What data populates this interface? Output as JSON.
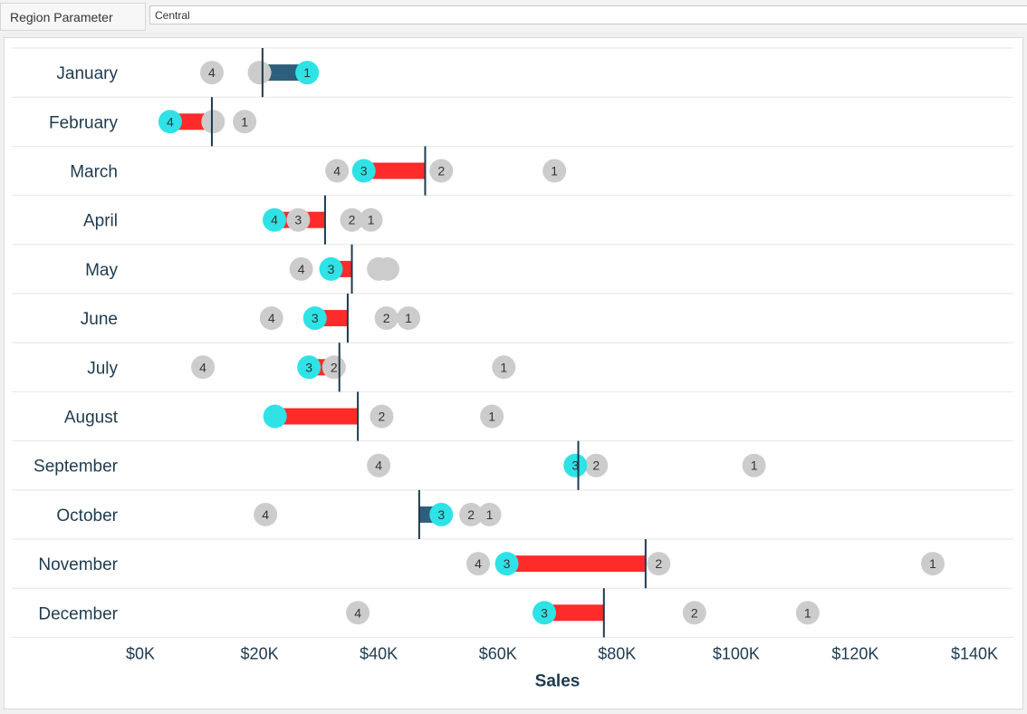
{
  "parameter": {
    "label": "Region Parameter",
    "value": "Central"
  },
  "colors": {
    "selected": "#2ee2e6",
    "other": "#cccccc",
    "below_target": "#ff2a2a",
    "above_target": "#2e5f7a",
    "target_line": "#1e3a4f"
  },
  "chart_data": {
    "type": "scatter",
    "xlabel": "Sales",
    "ylabel": "",
    "xlim": [
      0,
      140000
    ],
    "x_ticks": [
      "$0K",
      "$20K",
      "$40K",
      "$60K",
      "$80K",
      "$100K",
      "$120K",
      "$140K"
    ],
    "x_tick_values": [
      0,
      20000,
      40000,
      60000,
      80000,
      100000,
      120000,
      140000
    ],
    "grid": "horizontal row dividers",
    "selected_region": "Central",
    "months": [
      {
        "month": "January",
        "target": 20500,
        "selected": {
          "rank": "1",
          "value": 28000
        },
        "others": [
          {
            "rank": "4",
            "value": 12000
          },
          {
            "rank": "",
            "value": 20000
          }
        ]
      },
      {
        "month": "February",
        "target": 12000,
        "selected": {
          "rank": "4",
          "value": 5000
        },
        "others": [
          {
            "rank": "",
            "value": 12200
          },
          {
            "rank": "1",
            "value": 17500
          }
        ]
      },
      {
        "month": "March",
        "target": 47800,
        "selected": {
          "rank": "3",
          "value": 37500
        },
        "others": [
          {
            "rank": "4",
            "value": 33000
          },
          {
            "rank": "2",
            "value": 50500
          },
          {
            "rank": "1",
            "value": 69500
          }
        ]
      },
      {
        "month": "April",
        "target": 31000,
        "selected": {
          "rank": "4",
          "value": 22500
        },
        "others": [
          {
            "rank": "3",
            "value": 26500
          },
          {
            "rank": "2",
            "value": 35500
          },
          {
            "rank": "1",
            "value": 38700
          }
        ]
      },
      {
        "month": "May",
        "target": 35500,
        "selected": {
          "rank": "3",
          "value": 32000
        },
        "others": [
          {
            "rank": "4",
            "value": 27000
          },
          {
            "rank": "",
            "value": 40000
          },
          {
            "rank": "",
            "value": 41500
          }
        ]
      },
      {
        "month": "June",
        "target": 34800,
        "selected": {
          "rank": "3",
          "value": 29300
        },
        "others": [
          {
            "rank": "4",
            "value": 22000
          },
          {
            "rank": "2",
            "value": 41300
          },
          {
            "rank": "1",
            "value": 45000
          }
        ]
      },
      {
        "month": "July",
        "target": 33400,
        "selected": {
          "rank": "3",
          "value": 28300
        },
        "others": [
          {
            "rank": "4",
            "value": 10500
          },
          {
            "rank": "2",
            "value": 32500
          },
          {
            "rank": "1",
            "value": 61000
          }
        ]
      },
      {
        "month": "August",
        "target": 36500,
        "selected": {
          "rank": "",
          "value": 22600
        },
        "others": [
          {
            "rank": "2",
            "value": 40500
          },
          {
            "rank": "1",
            "value": 59000
          }
        ]
      },
      {
        "month": "September",
        "target": 73500,
        "selected": {
          "rank": "3",
          "value": 73000
        },
        "others": [
          {
            "rank": "4",
            "value": 40000
          },
          {
            "rank": "2",
            "value": 76500
          },
          {
            "rank": "1",
            "value": 103000
          }
        ]
      },
      {
        "month": "October",
        "target": 46800,
        "selected": {
          "rank": "3",
          "value": 50500
        },
        "others": [
          {
            "rank": "4",
            "value": 21000
          },
          {
            "rank": "2",
            "value": 55500
          },
          {
            "rank": "1",
            "value": 58600
          }
        ]
      },
      {
        "month": "November",
        "target": 84800,
        "selected": {
          "rank": "3",
          "value": 61500
        },
        "others": [
          {
            "rank": "4",
            "value": 56700
          },
          {
            "rank": "2",
            "value": 87000
          },
          {
            "rank": "1",
            "value": 133000
          }
        ]
      },
      {
        "month": "December",
        "target": 77800,
        "selected": {
          "rank": "3",
          "value": 67800
        },
        "others": [
          {
            "rank": "4",
            "value": 36500
          },
          {
            "rank": "2",
            "value": 93000
          },
          {
            "rank": "1",
            "value": 112000
          }
        ]
      }
    ]
  }
}
